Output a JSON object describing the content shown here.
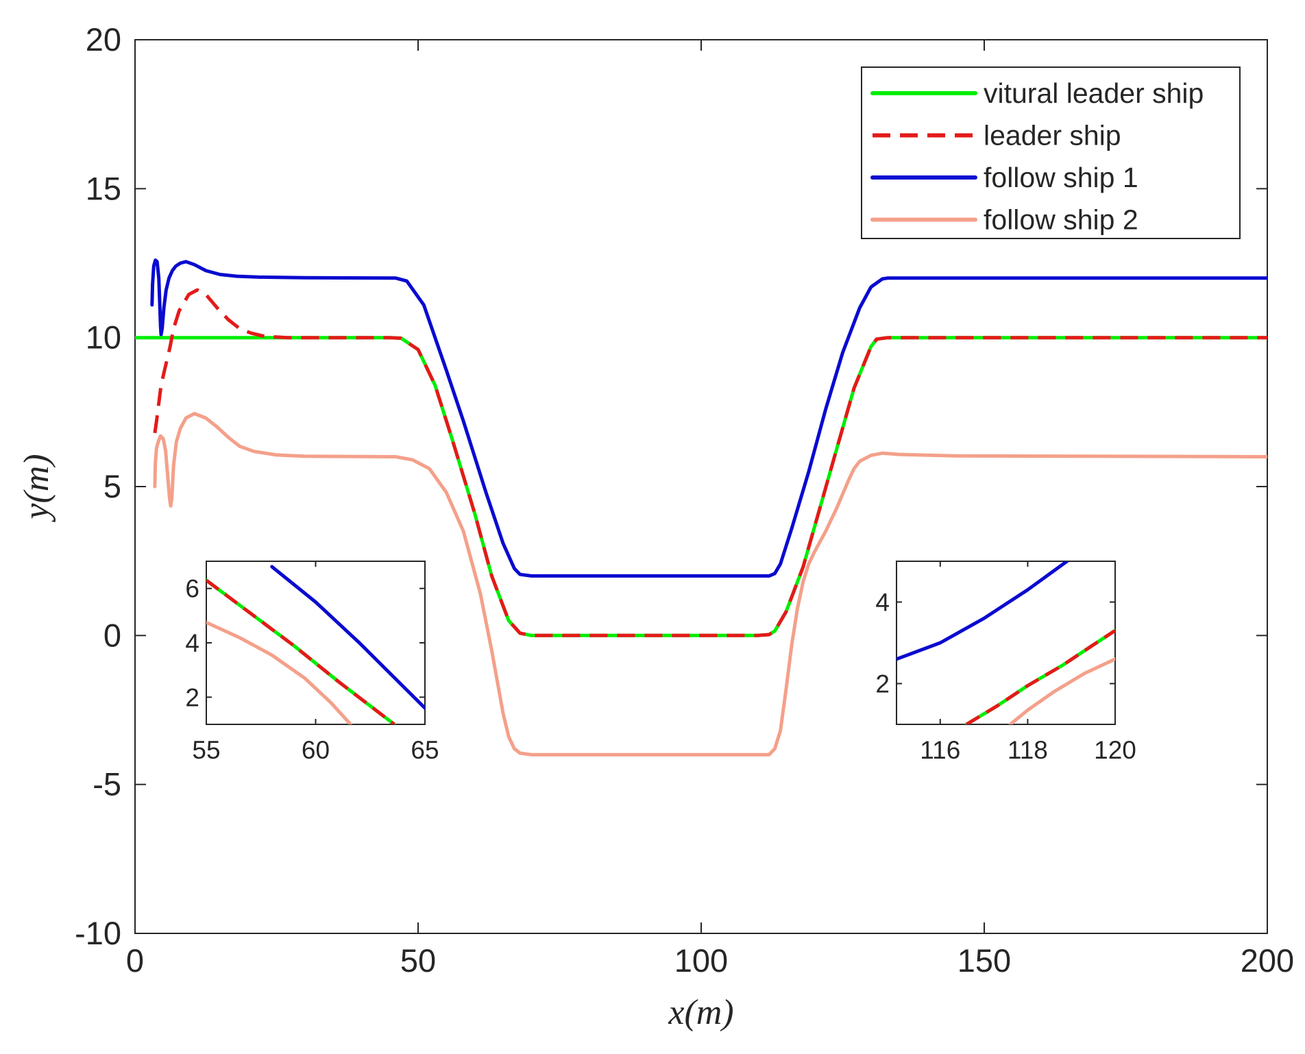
{
  "chart_data": {
    "type": "line",
    "xlabel": "x(m)",
    "ylabel": "y(m)",
    "xlim": [
      0,
      200
    ],
    "ylim": [
      -10,
      20
    ],
    "xticks": [
      0,
      50,
      100,
      150,
      200
    ],
    "yticks": [
      -10,
      -5,
      0,
      5,
      10,
      15,
      20
    ],
    "xtick_labels": [
      "0",
      "50",
      "100",
      "150",
      "200"
    ],
    "ytick_labels": [
      "-10",
      "-5",
      "0",
      "5",
      "10",
      "15",
      "20"
    ],
    "grid": false,
    "legend_position": "top-right",
    "series": [
      {
        "name": "vitural leader ship",
        "color": "#00ee00",
        "style": "solid",
        "x": [
          0,
          45,
          47,
          50,
          53,
          56,
          60,
          63,
          66,
          68,
          70,
          110,
          112,
          113,
          115,
          118,
          121,
          124,
          127,
          130,
          131,
          133,
          200
        ],
        "y": [
          10,
          10,
          9.98,
          9.6,
          8.4,
          6.6,
          4.1,
          2.0,
          0.5,
          0.08,
          0,
          0,
          0.03,
          0.15,
          0.8,
          2.3,
          4.3,
          6.3,
          8.3,
          9.7,
          9.95,
          10,
          10
        ]
      },
      {
        "name": "leader ship",
        "color": "#e41a1a",
        "style": "dashed",
        "x": [
          3.5,
          3.8,
          4.2,
          4.6,
          5.2,
          6.2,
          6.8,
          7.8,
          9.5,
          11,
          12.5,
          14.5,
          16.5,
          18.5,
          20.5,
          22.5,
          25,
          27,
          45,
          47,
          50,
          53,
          56,
          60,
          63,
          66,
          68,
          70,
          110,
          112,
          113,
          115,
          118,
          121,
          124,
          127,
          130,
          131,
          133,
          200
        ],
        "y": [
          6.8,
          7.2,
          7.8,
          8.4,
          8.9,
          9.7,
          10.3,
          10.9,
          11.45,
          11.6,
          11.45,
          11.0,
          10.6,
          10.3,
          10.15,
          10.06,
          10.02,
          10,
          10,
          9.98,
          9.6,
          8.4,
          6.6,
          4.1,
          2.0,
          0.5,
          0.08,
          0,
          0,
          0.03,
          0.15,
          0.8,
          2.3,
          4.3,
          6.3,
          8.3,
          9.7,
          9.95,
          10,
          10
        ]
      },
      {
        "name": "follow ship 1",
        "color": "#0a0ad0",
        "style": "solid",
        "x": [
          3.0,
          3.1,
          3.3,
          3.6,
          3.9,
          4.2,
          4.4,
          4.5,
          4.6,
          4.8,
          5.1,
          5.5,
          6.0,
          6.6,
          7.2,
          8.0,
          9.0,
          10.5,
          12.5,
          15,
          18,
          22,
          30,
          46,
          48,
          51,
          55,
          58,
          62,
          65,
          67,
          68,
          70,
          112,
          113,
          114,
          116,
          119,
          122,
          125,
          128,
          130,
          132,
          133,
          200
        ],
        "y": [
          11.1,
          11.8,
          12.4,
          12.6,
          12.55,
          12.0,
          11.0,
          10.4,
          10.1,
          10.3,
          11.0,
          11.6,
          12.0,
          12.25,
          12.4,
          12.5,
          12.55,
          12.45,
          12.25,
          12.12,
          12.06,
          12.03,
          12.01,
          12.0,
          11.9,
          11.1,
          8.9,
          7.2,
          4.8,
          3.1,
          2.25,
          2.05,
          2.0,
          2.0,
          2.08,
          2.4,
          3.6,
          5.5,
          7.6,
          9.5,
          11.0,
          11.7,
          11.97,
          12.0,
          12.0
        ]
      },
      {
        "name": "follow ship 2",
        "color": "#f4a08a",
        "style": "solid",
        "x": [
          3.5,
          3.6,
          3.8,
          4.1,
          4.5,
          5.0,
          5.4,
          5.8,
          6.1,
          6.3,
          6.5,
          6.8,
          7.3,
          8.0,
          9.0,
          10.5,
          12.5,
          14.5,
          16.5,
          18.5,
          21,
          25,
          30,
          46,
          49,
          52,
          55,
          58,
          61,
          63,
          65,
          66,
          67,
          68,
          70,
          110,
          112,
          113,
          114,
          115,
          116,
          117,
          118,
          119,
          120,
          122,
          124,
          126,
          127,
          128,
          130,
          132,
          135,
          145,
          200
        ],
        "y": [
          5.0,
          5.8,
          6.3,
          6.5,
          6.7,
          6.6,
          6.2,
          5.3,
          4.6,
          4.35,
          4.6,
          5.7,
          6.5,
          6.95,
          7.3,
          7.45,
          7.3,
          7.0,
          6.65,
          6.35,
          6.18,
          6.06,
          6.02,
          6.0,
          5.9,
          5.6,
          4.8,
          3.5,
          1.4,
          -0.5,
          -2.6,
          -3.4,
          -3.8,
          -3.95,
          -4.0,
          -4.0,
          -4.0,
          -3.8,
          -3.2,
          -1.8,
          -0.3,
          0.9,
          1.8,
          2.4,
          2.8,
          3.5,
          4.3,
          5.2,
          5.6,
          5.85,
          6.05,
          6.12,
          6.08,
          6.03,
          6.0
        ]
      }
    ],
    "insets": [
      {
        "xlim": [
          55,
          65
        ],
        "ylim": [
          1,
          7
        ],
        "xticks": [
          55,
          60,
          65
        ],
        "yticks": [
          2,
          4,
          6
        ],
        "xtick_labels": [
          "55",
          "60",
          "65"
        ],
        "ytick_labels": [
          "2",
          "4",
          "6"
        ],
        "series": [
          {
            "name": "vitural leader ship",
            "x": [
              55,
              57,
              59,
              61,
              63.6
            ],
            "y": [
              6.3,
              5.1,
              3.9,
              2.6,
              1.0
            ]
          },
          {
            "name": "leader ship",
            "x": [
              55,
              57,
              59,
              61,
              63.6
            ],
            "y": [
              6.3,
              5.1,
              3.9,
              2.6,
              1.0
            ]
          },
          {
            "name": "follow ship 1",
            "x": [
              58.0,
              60,
              62,
              64,
              65
            ],
            "y": [
              6.8,
              5.5,
              4.0,
              2.4,
              1.6
            ]
          },
          {
            "name": "follow ship 2",
            "x": [
              55,
              56.5,
              58,
              59.5,
              60.7,
              61.6
            ],
            "y": [
              4.75,
              4.2,
              3.55,
              2.7,
              1.8,
              1.0
            ]
          }
        ]
      },
      {
        "xlim": [
          115,
          120
        ],
        "ylim": [
          1,
          5
        ],
        "xticks": [
          116,
          118,
          120
        ],
        "yticks": [
          2,
          4
        ],
        "xtick_labels": [
          "116",
          "118",
          "120"
        ],
        "ytick_labels": [
          "2",
          "4"
        ],
        "series": [
          {
            "name": "vitural leader ship",
            "x": [
              116.6,
              117.3,
              118,
              118.8,
              119.5,
              120
            ],
            "y": [
              1.0,
              1.45,
              1.95,
              2.45,
              2.95,
              3.3
            ]
          },
          {
            "name": "leader ship",
            "x": [
              116.6,
              117.3,
              118,
              118.8,
              119.5,
              120
            ],
            "y": [
              1.0,
              1.45,
              1.95,
              2.45,
              2.95,
              3.3
            ]
          },
          {
            "name": "follow ship 1",
            "x": [
              115,
              116,
              117,
              118,
              118.9
            ],
            "y": [
              2.6,
              3.0,
              3.6,
              4.3,
              5.0
            ]
          },
          {
            "name": "follow ship 2",
            "x": [
              117.6,
              118,
              118.6,
              119.3,
              120
            ],
            "y": [
              1.0,
              1.35,
              1.8,
              2.25,
              2.6
            ]
          }
        ]
      }
    ]
  }
}
